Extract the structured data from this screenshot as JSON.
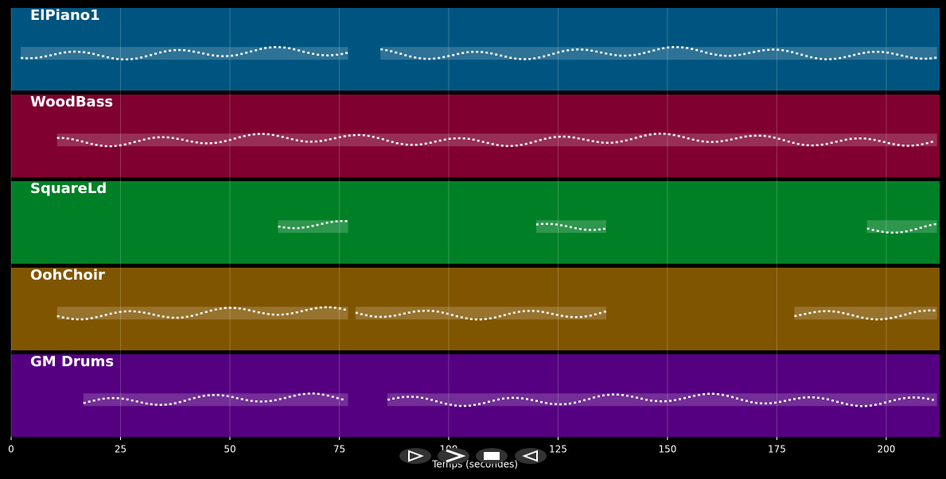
{
  "chart_data": {
    "type": "pianoroll",
    "xlabel": "Temps (secondes)",
    "xlim": [
      0,
      212.2
    ],
    "xticks": [
      0,
      25,
      50,
      75,
      100,
      125,
      150,
      175,
      200
    ],
    "grid": true,
    "tracks": [
      {
        "name": "ElPiano1",
        "color": "#005580",
        "spans": [
          [
            2.2,
            77
          ],
          [
            84.4,
            211.6
          ]
        ]
      },
      {
        "name": "WoodBass",
        "color": "#800030",
        "spans": [
          [
            10.5,
            211.6
          ]
        ]
      },
      {
        "name": "SquareLd",
        "color": "#008026",
        "spans": [
          [
            61,
            77
          ],
          [
            120,
            136
          ],
          [
            195.6,
            211.6
          ]
        ]
      },
      {
        "name": "OohChoir",
        "color": "#805500",
        "spans": [
          [
            10.5,
            77
          ],
          [
            78.7,
            136
          ],
          [
            179,
            211.6
          ]
        ]
      },
      {
        "name": "GM Drums",
        "color": "#550080",
        "spans": [
          [
            16.5,
            77
          ],
          [
            86,
            211.6
          ]
        ]
      }
    ]
  }
}
